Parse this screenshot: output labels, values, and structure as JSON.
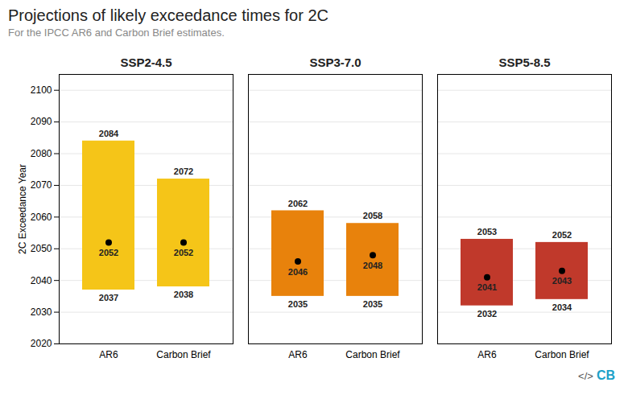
{
  "chart_data": {
    "type": "range_bar",
    "title": "Projections of likely exceedance times for 2C",
    "subtitle": "For the IPCC AR6 and Carbon Brief estimates.",
    "ylabel": "2C Exceedance Year",
    "ylim": [
      2020,
      2105
    ],
    "yticks": [
      2020,
      2030,
      2040,
      2050,
      2060,
      2070,
      2080,
      2090,
      2100
    ],
    "grid": true,
    "data_labels": true,
    "groups": [
      {
        "label": "SSP2-4.5",
        "categories": [
          "AR6",
          "Carbon Brief"
        ],
        "low": [
          2037,
          2038
        ],
        "median": [
          2052,
          2052
        ],
        "high": [
          2084,
          2072
        ],
        "color": "#F5C518"
      },
      {
        "label": "SSP3-7.0",
        "categories": [
          "AR6",
          "Carbon Brief"
        ],
        "low": [
          2035,
          2035
        ],
        "median": [
          2046,
          2048
        ],
        "high": [
          2062,
          2058
        ],
        "color": "#E8820C"
      },
      {
        "label": "SSP5-8.5",
        "categories": [
          "AR6",
          "Carbon Brief"
        ],
        "low": [
          2032,
          2034
        ],
        "median": [
          2041,
          2043
        ],
        "high": [
          2053,
          2052
        ],
        "color": "#C0392B"
      }
    ],
    "annotations": [
      {
        "text": "</>"
      },
      {
        "text": "CB",
        "color": "#1DA1C8"
      }
    ]
  }
}
